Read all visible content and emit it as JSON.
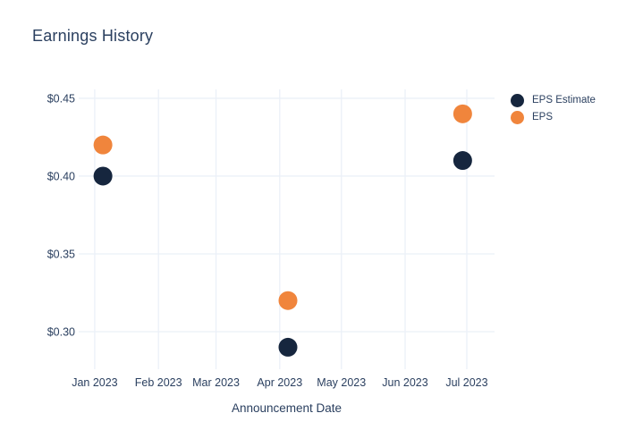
{
  "chart_data": {
    "type": "scatter",
    "title": "Earnings History",
    "xlabel": "Announcement Date",
    "ylabel": "",
    "grid": true,
    "legend_position": "right",
    "x_tick_labels": [
      "Jan 2023",
      "Feb 2023",
      "Mar 2023",
      "Apr 2023",
      "May 2023",
      "Jun 2023",
      "Jul 2023"
    ],
    "x_tick_day_offsets": [
      0,
      31,
      59,
      90,
      120,
      151,
      181
    ],
    "xlim_days": [
      -7.8,
      194.5
    ],
    "y_ticks": [
      0.3,
      0.35,
      0.4,
      0.45
    ],
    "y_tick_labels": [
      "$0.30",
      "$0.35",
      "$0.40",
      "$0.45"
    ],
    "ylim": [
      0.2776,
      0.4557
    ],
    "marker_size_px": 21,
    "colors": {
      "grid": "#EBF0F8",
      "text": "#2A3F5F",
      "background": "#FFFFFF"
    },
    "series": [
      {
        "name": "EPS Estimate",
        "color": "#16263E",
        "points": [
          {
            "date": "2023-01-05",
            "day": 4,
            "value": 0.4
          },
          {
            "date": "2023-04-05",
            "day": 94,
            "value": 0.29
          },
          {
            "date": "2023-06-29",
            "day": 179,
            "value": 0.41
          }
        ]
      },
      {
        "name": "EPS",
        "color": "#F0853C",
        "points": [
          {
            "date": "2023-01-05",
            "day": 4,
            "value": 0.42
          },
          {
            "date": "2023-04-05",
            "day": 94,
            "value": 0.32
          },
          {
            "date": "2023-06-29",
            "day": 179,
            "value": 0.44
          }
        ]
      }
    ]
  }
}
